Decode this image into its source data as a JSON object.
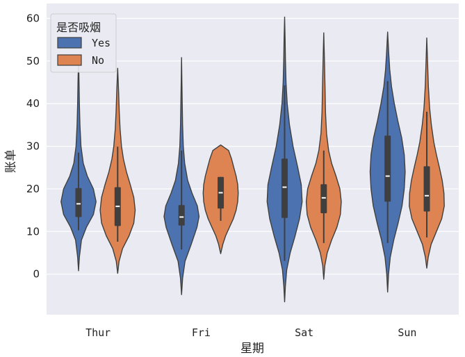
{
  "chart_data": {
    "type": "violin",
    "title": "",
    "xlabel": "星期",
    "ylabel": "账单",
    "categories": [
      "Thur",
      "Fri",
      "Sat",
      "Sun"
    ],
    "yticks": [
      0,
      10,
      20,
      30,
      40,
      50,
      60
    ],
    "ylim": [
      -9.5,
      63.5
    ],
    "grid": true,
    "background": "#eaeaf2",
    "legend": {
      "title": "是否吸烟",
      "placement": "top-left",
      "entries": [
        "Yes",
        "No"
      ]
    },
    "series": [
      {
        "name": "Yes",
        "color": "#4c72b0",
        "violins": [
          {
            "category": "Thur",
            "min": 0.8,
            "max": 50.8,
            "q1": 13.4,
            "median": 16.5,
            "q3": 20.2,
            "whisker_low": 10.3,
            "whisker_high": 28.5,
            "profile": [
              [
                0.8,
                0
              ],
              [
                4,
                0.05
              ],
              [
                8,
                0.17
              ],
              [
                11,
                0.45
              ],
              [
                14,
                0.85
              ],
              [
                17,
                1.0
              ],
              [
                20,
                0.85
              ],
              [
                23,
                0.5
              ],
              [
                26,
                0.27
              ],
              [
                30,
                0.14
              ],
              [
                35,
                0.08
              ],
              [
                40,
                0.05
              ],
              [
                45,
                0.03
              ],
              [
                50.8,
                0
              ]
            ]
          },
          {
            "category": "Fri",
            "min": -4.8,
            "max": 50.8,
            "q1": 11.4,
            "median": 13.4,
            "q3": 16.2,
            "whisker_low": 5.8,
            "whisker_high": 29.0,
            "profile": [
              [
                -4.8,
                0
              ],
              [
                -1,
                0.06
              ],
              [
                3,
                0.2
              ],
              [
                7,
                0.55
              ],
              [
                11,
                0.88
              ],
              [
                13.5,
                1.0
              ],
              [
                16,
                0.9
              ],
              [
                19,
                0.6
              ],
              [
                22,
                0.35
              ],
              [
                26,
                0.18
              ],
              [
                30,
                0.1
              ],
              [
                35,
                0.06
              ],
              [
                40,
                0.04
              ],
              [
                45,
                0.02
              ],
              [
                50.8,
                0
              ]
            ]
          },
          {
            "category": "Sat",
            "min": -6.5,
            "max": 60.3,
            "q1": 13.2,
            "median": 20.4,
            "q3": 27.1,
            "whisker_low": 3.1,
            "whisker_high": 44.3,
            "profile": [
              [
                -6.5,
                0
              ],
              [
                -3,
                0.04
              ],
              [
                1,
                0.12
              ],
              [
                5,
                0.32
              ],
              [
                9,
                0.6
              ],
              [
                13,
                0.85
              ],
              [
                17,
                1.0
              ],
              [
                21,
                0.95
              ],
              [
                25,
                0.75
              ],
              [
                30,
                0.48
              ],
              [
                35,
                0.28
              ],
              [
                40,
                0.15
              ],
              [
                45,
                0.08
              ],
              [
                50,
                0.05
              ],
              [
                55,
                0.03
              ],
              [
                60.3,
                0
              ]
            ]
          },
          {
            "category": "Sun",
            "min": -4.2,
            "max": 56.8,
            "q1": 17.0,
            "median": 23.0,
            "q3": 32.5,
            "whisker_low": 7.3,
            "whisker_high": 45.3,
            "profile": [
              [
                -4.2,
                0
              ],
              [
                0,
                0.05
              ],
              [
                4,
                0.15
              ],
              [
                8,
                0.35
              ],
              [
                12,
                0.6
              ],
              [
                16,
                0.82
              ],
              [
                20,
                0.95
              ],
              [
                24,
                1.0
              ],
              [
                28,
                0.95
              ],
              [
                32,
                0.8
              ],
              [
                36,
                0.58
              ],
              [
                40,
                0.38
              ],
              [
                44,
                0.22
              ],
              [
                48,
                0.12
              ],
              [
                52,
                0.06
              ],
              [
                56.8,
                0
              ]
            ]
          }
        ]
      },
      {
        "name": "No",
        "color": "#dd8452",
        "violins": [
          {
            "category": "Thur",
            "min": 0.2,
            "max": 48.3,
            "q1": 11.3,
            "median": 15.9,
            "q3": 20.4,
            "whisker_low": 7.6,
            "whisker_high": 29.9,
            "profile": [
              [
                0.2,
                0
              ],
              [
                3,
                0.08
              ],
              [
                6,
                0.28
              ],
              [
                9,
                0.65
              ],
              [
                12,
                0.92
              ],
              [
                15,
                1.0
              ],
              [
                18,
                0.92
              ],
              [
                21,
                0.72
              ],
              [
                24,
                0.5
              ],
              [
                27,
                0.33
              ],
              [
                30,
                0.22
              ],
              [
                34,
                0.14
              ],
              [
                38,
                0.09
              ],
              [
                43,
                0.05
              ],
              [
                48.3,
                0
              ]
            ]
          },
          {
            "category": "Fri",
            "min": 4.8,
            "max": 30.3,
            "q1": 15.4,
            "median": 19.1,
            "q3": 22.8,
            "whisker_low": 12.5,
            "whisker_high": 22.8,
            "profile": [
              [
                4.8,
                0
              ],
              [
                7,
                0.12
              ],
              [
                9,
                0.28
              ],
              [
                11,
                0.5
              ],
              [
                13,
                0.72
              ],
              [
                15,
                0.88
              ],
              [
                17,
                0.97
              ],
              [
                19,
                1.0
              ],
              [
                21,
                0.97
              ],
              [
                23,
                0.88
              ],
              [
                25,
                0.75
              ],
              [
                27,
                0.62
              ],
              [
                29,
                0.45
              ],
              [
                30.3,
                0
              ]
            ]
          },
          {
            "category": "Sat",
            "min": -1.2,
            "max": 56.6,
            "q1": 14.3,
            "median": 17.9,
            "q3": 21.1,
            "whisker_low": 7.3,
            "whisker_high": 29.0,
            "profile": [
              [
                -1.2,
                0
              ],
              [
                2,
                0.06
              ],
              [
                5,
                0.2
              ],
              [
                8,
                0.45
              ],
              [
                11,
                0.75
              ],
              [
                14,
                0.95
              ],
              [
                17,
                1.0
              ],
              [
                20,
                0.92
              ],
              [
                23,
                0.7
              ],
              [
                26,
                0.45
              ],
              [
                29,
                0.28
              ],
              [
                33,
                0.16
              ],
              [
                38,
                0.1
              ],
              [
                44,
                0.07
              ],
              [
                50,
                0.04
              ],
              [
                56.6,
                0
              ]
            ]
          },
          {
            "category": "Sun",
            "min": 1.4,
            "max": 55.4,
            "q1": 14.7,
            "median": 18.4,
            "q3": 25.3,
            "whisker_low": 8.6,
            "whisker_high": 38.1,
            "profile": [
              [
                1.4,
                0
              ],
              [
                4,
                0.08
              ],
              [
                7,
                0.25
              ],
              [
                10,
                0.55
              ],
              [
                13,
                0.85
              ],
              [
                16,
                1.0
              ],
              [
                19,
                0.98
              ],
              [
                22,
                0.88
              ],
              [
                25,
                0.72
              ],
              [
                28,
                0.55
              ],
              [
                31,
                0.4
              ],
              [
                35,
                0.26
              ],
              [
                39,
                0.16
              ],
              [
                44,
                0.09
              ],
              [
                49,
                0.05
              ],
              [
                55.4,
                0
              ]
            ]
          }
        ]
      }
    ]
  }
}
